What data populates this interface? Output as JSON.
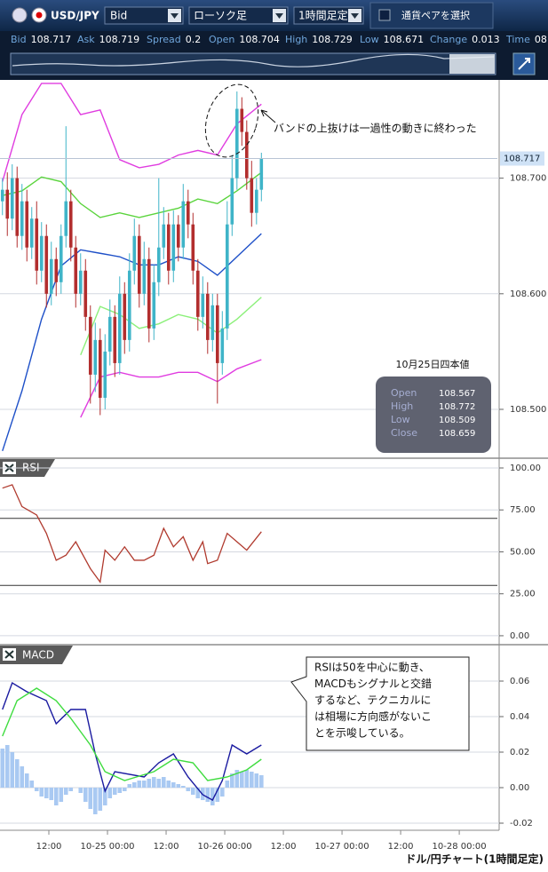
{
  "toolbar": {
    "pair": "USD/JPY",
    "price_type": "Bid",
    "chart_type": "ローソク足",
    "period": "1時間足定",
    "select_label": "通貨ペアを選択"
  },
  "quote": [
    {
      "label": "Bid",
      "value": 108.717
    },
    {
      "label": "Ask",
      "value": 108.719
    },
    {
      "label": "Spread",
      "value": 0.2
    },
    {
      "label": "Open",
      "value": 108.704
    },
    {
      "label": "High",
      "value": 108.729
    },
    {
      "label": "Low",
      "value": 108.671
    },
    {
      "label": "Change",
      "value": 0.013
    },
    {
      "label": "Time",
      "value": "08"
    }
  ],
  "chart_data": [
    {
      "type": "candlestick",
      "xlim": [
        0,
        101.8
      ],
      "ylim": [
        108.4585,
        108.785
      ],
      "yticks": [
        {
          "value": 108.5,
          "label": "108.500"
        },
        {
          "value": 108.6,
          "label": "108.600"
        },
        {
          "value": 108.7,
          "label": "108.700"
        }
      ],
      "grid": true,
      "up_color": "#3fb4c8",
      "down_color": "#b22e2e",
      "open": [
        108.68,
        108.69,
        108.665,
        108.7,
        108.65,
        108.68,
        108.64,
        108.665,
        108.62,
        108.65,
        108.6,
        108.63,
        108.61,
        108.65,
        108.68,
        108.64,
        108.6,
        108.62,
        108.58,
        108.53,
        108.56,
        108.51,
        108.55,
        108.58,
        108.54,
        108.6,
        108.56,
        108.62,
        108.65,
        108.6,
        108.63,
        108.57,
        108.61,
        108.64,
        108.66,
        108.62,
        108.66,
        108.64,
        108.68,
        108.66,
        108.62,
        108.58,
        108.6,
        108.56,
        108.59,
        108.54,
        108.57,
        108.66,
        108.7,
        108.76,
        108.74,
        108.7,
        108.67,
        108.69
      ],
      "high": [
        108.7,
        108.705,
        108.712,
        108.71,
        108.695,
        108.69,
        108.675,
        108.68,
        108.662,
        108.66,
        108.645,
        108.64,
        108.66,
        108.745,
        108.69,
        108.65,
        108.635,
        108.63,
        108.59,
        108.575,
        108.57,
        108.565,
        108.595,
        108.59,
        108.615,
        108.61,
        108.635,
        108.665,
        108.66,
        108.645,
        108.64,
        108.625,
        108.7,
        108.675,
        108.67,
        108.672,
        108.668,
        108.695,
        108.69,
        108.67,
        108.63,
        108.615,
        108.61,
        108.6,
        108.6,
        108.585,
        108.68,
        108.72,
        108.775,
        108.77,
        108.75,
        108.715,
        108.7,
        108.722
      ],
      "low": [
        108.668,
        108.65,
        108.655,
        108.64,
        108.638,
        108.628,
        108.63,
        108.608,
        108.61,
        108.588,
        108.59,
        108.598,
        108.6,
        108.64,
        108.628,
        108.588,
        108.59,
        108.568,
        108.505,
        108.515,
        108.495,
        108.5,
        108.538,
        108.528,
        108.53,
        108.548,
        108.55,
        108.608,
        108.588,
        108.59,
        108.558,
        108.56,
        108.598,
        108.63,
        108.608,
        108.61,
        108.628,
        108.63,
        108.648,
        108.608,
        108.568,
        108.57,
        108.548,
        108.55,
        108.505,
        108.53,
        108.56,
        108.65,
        108.69,
        108.728,
        108.69,
        108.658,
        108.66,
        108.68
      ],
      "close": [
        108.69,
        108.665,
        108.7,
        108.65,
        108.68,
        108.64,
        108.665,
        108.62,
        108.65,
        108.6,
        108.63,
        108.61,
        108.65,
        108.68,
        108.64,
        108.6,
        108.62,
        108.58,
        108.53,
        108.56,
        108.51,
        108.55,
        108.58,
        108.54,
        108.6,
        108.56,
        108.62,
        108.65,
        108.6,
        108.63,
        108.57,
        108.61,
        108.64,
        108.66,
        108.62,
        108.66,
        108.64,
        108.68,
        108.66,
        108.62,
        108.58,
        108.6,
        108.56,
        108.59,
        108.54,
        108.57,
        108.66,
        108.7,
        108.76,
        108.74,
        108.7,
        108.67,
        108.69,
        108.717
      ],
      "series": [
        {
          "color": "#1e50c8",
          "x": [
            0,
            4,
            8,
            12,
            16,
            20,
            24,
            28,
            32,
            36,
            40,
            44,
            48,
            53
          ],
          "values": [
            108.464,
            108.516,
            108.578,
            108.624,
            108.638,
            108.635,
            108.632,
            108.625,
            108.625,
            108.632,
            108.628,
            108.616,
            108.632,
            108.652
          ]
        },
        {
          "color": "#e03ce0",
          "x": [
            0,
            4,
            8,
            12,
            16,
            20,
            24,
            28,
            32,
            36,
            40,
            44,
            48,
            53
          ],
          "values": [
            108.697,
            108.755,
            108.782,
            108.782,
            108.755,
            108.759,
            108.716,
            108.709,
            108.712,
            108.72,
            108.724,
            108.72,
            108.747,
            108.764
          ]
        },
        {
          "color": "#e03ce0",
          "x": [
            0,
            4,
            8,
            12,
            16,
            20,
            24,
            28,
            32,
            36,
            40,
            44,
            48,
            53
          ],
          "values": [
            null,
            null,
            null,
            null,
            108.493,
            108.528,
            108.532,
            108.528,
            108.528,
            108.532,
            108.532,
            108.524,
            108.535,
            108.543
          ]
        },
        {
          "color": "#5ad43c",
          "x": [
            0,
            4,
            8,
            12,
            16,
            20,
            24,
            28,
            32,
            36,
            40,
            44,
            48,
            53
          ],
          "values": [
            108.685,
            108.689,
            108.701,
            108.697,
            108.678,
            108.666,
            108.67,
            108.666,
            108.67,
            108.674,
            108.682,
            108.678,
            108.689,
            108.705
          ]
        },
        {
          "color": "#8cf07a",
          "x": [
            0,
            4,
            8,
            12,
            16,
            20,
            24,
            28,
            32,
            36,
            40,
            44,
            48,
            53
          ],
          "values": [
            null,
            null,
            null,
            null,
            108.547,
            108.589,
            108.582,
            108.57,
            108.574,
            108.582,
            108.578,
            108.566,
            108.578,
            108.597
          ]
        }
      ],
      "current_price": 108.717,
      "annotation": "バンドの上抜けは一過性の動きに終わった",
      "info_box": {
        "title": "10月25日四本値",
        "rows": [
          {
            "label": "Open",
            "value": 108.567
          },
          {
            "label": "High",
            "value": 108.772
          },
          {
            "label": "Low",
            "value": 108.509
          },
          {
            "label": "Close",
            "value": 108.659
          }
        ]
      }
    },
    {
      "type": "line",
      "title": "RSI",
      "xlim": [
        0,
        101.8
      ],
      "ylim": [
        -4.8,
        105.3
      ],
      "yticks": [
        {
          "value": 0,
          "label": "0.00"
        },
        {
          "value": 25,
          "label": "25.00"
        },
        {
          "value": 50,
          "label": "50.00"
        },
        {
          "value": 75,
          "label": "75.00"
        },
        {
          "value": 100,
          "label": "100.00"
        }
      ],
      "levels": [
        70,
        30
      ],
      "series": [
        {
          "color": "#b03a2e",
          "x": [
            0,
            2,
            4,
            7,
            9,
            11,
            13,
            15,
            18,
            20,
            21,
            23,
            25,
            27,
            29,
            31,
            33,
            35,
            37,
            39,
            41,
            42,
            44,
            46,
            48,
            50,
            53
          ],
          "values": [
            88,
            90,
            77,
            72,
            61,
            45,
            48,
            56,
            40,
            32,
            51,
            45,
            53,
            45,
            45,
            48,
            64,
            53,
            59,
            45,
            56,
            43,
            45,
            61,
            56,
            51,
            62
          ]
        }
      ]
    },
    {
      "type": "combo",
      "title": "MACD",
      "xlim": [
        0,
        101.8
      ],
      "ylim": [
        -0.024,
        0.08
      ],
      "yticks": [
        {
          "value": -0.02,
          "label": "-0.02"
        },
        {
          "value": 0,
          "label": "0.00"
        },
        {
          "value": 0.02,
          "label": "0.02"
        },
        {
          "value": 0.04,
          "label": "0.04"
        },
        {
          "value": 0.06,
          "label": "0.06"
        }
      ],
      "xticks": [
        {
          "value": 10,
          "label": "12:00"
        },
        {
          "value": 22,
          "label": "10-25 00:00"
        },
        {
          "value": 34,
          "label": "12:00"
        },
        {
          "value": 46,
          "label": "10-26 00:00"
        },
        {
          "value": 58,
          "label": "12:00"
        },
        {
          "value": 70,
          "label": "10-27 00:00"
        },
        {
          "value": 82,
          "label": "12:00"
        },
        {
          "value": 94,
          "label": "10-28 00:00"
        }
      ],
      "histogram": {
        "color": "#a9c9f2",
        "values": [
          0.022,
          0.024,
          0.02,
          0.016,
          0.012,
          0.008,
          0.004,
          -0.002,
          -0.005,
          -0.006,
          -0.007,
          -0.01,
          -0.008,
          -0.004,
          -0.002,
          0,
          -0.003,
          -0.008,
          -0.012,
          -0.015,
          -0.013,
          -0.01,
          -0.006,
          -0.004,
          -0.003,
          -0.002,
          0.002,
          0.003,
          0.004,
          0.004,
          0.005,
          0.006,
          0.005,
          0.006,
          0.004,
          0.003,
          0.002,
          0.001,
          -0.002,
          -0.004,
          -0.006,
          -0.007,
          -0.008,
          -0.01,
          -0.008,
          -0.005,
          0.004,
          0.008,
          0.01,
          0.009,
          0.01,
          0.009,
          0.008,
          0.007
        ]
      },
      "series": [
        {
          "color": "#1a1aa0",
          "x": [
            0,
            2,
            5,
            9,
            11,
            14,
            17,
            19,
            21,
            23,
            29,
            32,
            35,
            38,
            41,
            43,
            45,
            47,
            50,
            53
          ],
          "values": [
            0.044,
            0.059,
            0.054,
            0.049,
            0.036,
            0.044,
            0.044,
            0.019,
            -0.002,
            0.009,
            0.006,
            0.014,
            0.019,
            0.006,
            -0.004,
            -0.007,
            0.004,
            0.024,
            0.019,
            0.024
          ]
        },
        {
          "color": "#3fdc3f",
          "x": [
            0,
            3,
            7,
            11,
            14,
            18,
            21,
            25,
            31,
            35,
            39,
            42,
            46,
            50,
            53
          ],
          "values": [
            0.029,
            0.049,
            0.056,
            0.049,
            0.039,
            0.024,
            0.009,
            0.004,
            0.009,
            0.016,
            0.014,
            0.004,
            0.006,
            0.01,
            0.016
          ]
        }
      ],
      "annotation_lines": [
        "RSIは50を中心に動き、",
        "MACDもシグナルと交錯",
        "するなど、テクニカルに",
        "は相場に方向感がないこ",
        "とを示唆している。"
      ]
    }
  ],
  "footer": "ドル/円チャート(1時間足定)"
}
